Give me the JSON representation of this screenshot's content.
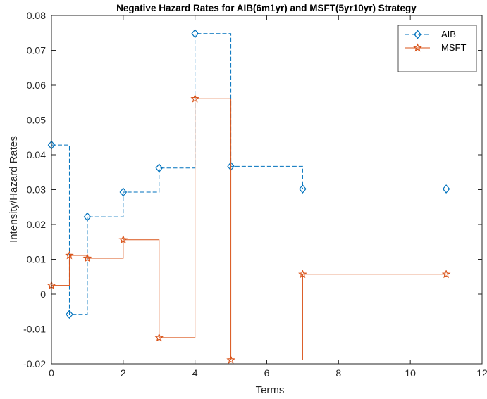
{
  "chart_data": {
    "type": "line",
    "step": true,
    "title": "Negative Hazard Rates for AIB(6m1yr) and MSFT(5yr10yr) Strategy",
    "xlabel": "Terms",
    "ylabel": "Intensity/Hazard Rates",
    "xlim": [
      0,
      12
    ],
    "ylim": [
      -0.02,
      0.08
    ],
    "xticks": [
      0,
      2,
      4,
      6,
      8,
      10,
      12
    ],
    "xtick_labels": [
      "0",
      "2",
      "4",
      "6",
      "8",
      "10",
      "12"
    ],
    "yticks": [
      -0.02,
      -0.01,
      0,
      0.01,
      0.02,
      0.03,
      0.04,
      0.05,
      0.06,
      0.07,
      0.08
    ],
    "ytick_labels": [
      "-0.02",
      "-0.01",
      "0",
      "0.01",
      "0.02",
      "0.03",
      "0.04",
      "0.05",
      "0.06",
      "0.07",
      "0.08"
    ],
    "grid": false,
    "legend_position": "top-right",
    "series": [
      {
        "name": "AIB",
        "color": "#0072BD",
        "line_style": "dashed",
        "marker": "diamond",
        "x": [
          0,
          0.5,
          1,
          2,
          3,
          4,
          5,
          7,
          11
        ],
        "y": [
          0.0428,
          -0.0058,
          0.0222,
          0.0293,
          0.0362,
          0.0748,
          0.0367,
          0.0302,
          0.0302
        ]
      },
      {
        "name": "MSFT",
        "color": "#D95319",
        "line_style": "solid",
        "marker": "pentagram",
        "x": [
          0,
          0.5,
          1,
          2,
          3,
          4,
          5,
          7,
          11
        ],
        "y": [
          0.0025,
          0.0111,
          0.0103,
          0.0156,
          -0.0125,
          0.0561,
          -0.0189,
          0.0057,
          0.0057
        ]
      }
    ]
  }
}
